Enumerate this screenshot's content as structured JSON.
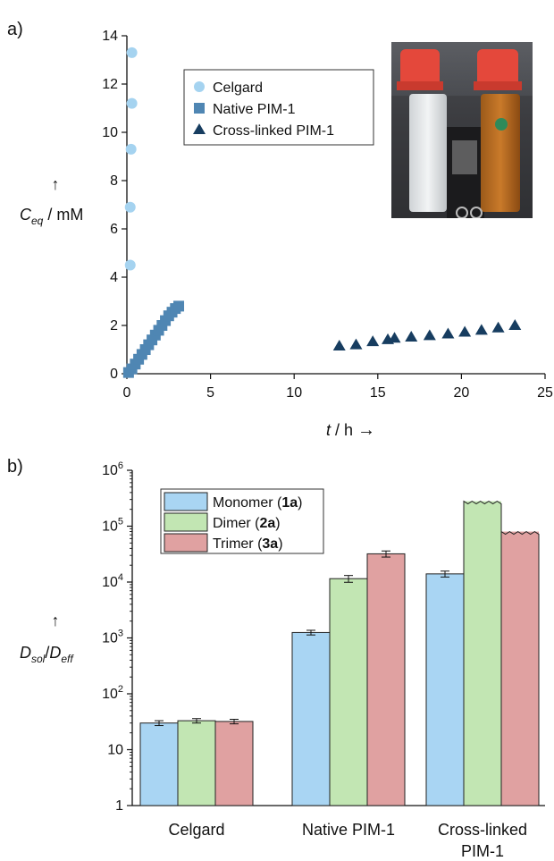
{
  "panels": {
    "a": "a)",
    "b": "b)"
  },
  "colors": {
    "celgard": "#a5d3f0",
    "native": "#4f86b3",
    "crosslinked": "#173d60",
    "monomer": "#a9d5f3",
    "dimer": "#c2e6b3",
    "trimer": "#e0a1a1"
  },
  "chart_data": [
    {
      "type": "scatter",
      "xlim": [
        0,
        25
      ],
      "ylim": [
        0,
        14
      ],
      "xticks": [
        "0",
        "5",
        "10",
        "15",
        "20",
        "25"
      ],
      "yticks": [
        "0",
        "2",
        "4",
        "6",
        "8",
        "10",
        "12",
        "14"
      ],
      "xlabel": {
        "var": "t",
        "unit": "/ h",
        "arrow": "→"
      },
      "ylabel": {
        "var": "C",
        "sub": "eq",
        "unit": "/ mM",
        "arrow": "↑"
      },
      "legend_position": "top-center",
      "series": [
        {
          "name": "Celgard",
          "marker": "circle",
          "points": [
            [
              0.2,
              4.5
            ],
            [
              0.2,
              6.9
            ],
            [
              0.25,
              9.3
            ],
            [
              0.3,
              11.2
            ],
            [
              0.3,
              13.3
            ]
          ]
        },
        {
          "name": "Native PIM-1",
          "marker": "square",
          "points": [
            [
              0.1,
              0.05
            ],
            [
              0.3,
              0.2
            ],
            [
              0.5,
              0.4
            ],
            [
              0.7,
              0.6
            ],
            [
              0.9,
              0.8
            ],
            [
              1.1,
              1.0
            ],
            [
              1.3,
              1.2
            ],
            [
              1.5,
              1.4
            ],
            [
              1.7,
              1.6
            ],
            [
              1.9,
              1.8
            ],
            [
              2.1,
              2.0
            ],
            [
              2.3,
              2.2
            ],
            [
              2.5,
              2.4
            ],
            [
              2.7,
              2.55
            ],
            [
              2.9,
              2.7
            ],
            [
              3.1,
              2.8
            ]
          ]
        },
        {
          "name": "Cross-linked PIM-1",
          "marker": "triangle",
          "points": [
            [
              12.7,
              1.15
            ],
            [
              13.7,
              1.2
            ],
            [
              14.7,
              1.33
            ],
            [
              15.6,
              1.41
            ],
            [
              16.0,
              1.47
            ],
            [
              17.0,
              1.52
            ],
            [
              18.1,
              1.58
            ],
            [
              19.2,
              1.65
            ],
            [
              20.2,
              1.72
            ],
            [
              21.2,
              1.8
            ],
            [
              22.2,
              1.9
            ],
            [
              23.2,
              2.0
            ]
          ]
        }
      ]
    },
    {
      "type": "bar",
      "yscale": "log",
      "ylim": [
        1,
        1000000
      ],
      "yticks": [
        {
          "base": "1",
          "exp": ""
        },
        {
          "base": "10",
          "exp": ""
        },
        {
          "base": "10",
          "exp": "2"
        },
        {
          "base": "10",
          "exp": "3"
        },
        {
          "base": "10",
          "exp": "4"
        },
        {
          "base": "10",
          "exp": "5"
        },
        {
          "base": "10",
          "exp": "6"
        }
      ],
      "ylabel": {
        "var": "D",
        "sub1": "sol",
        "var2": "D",
        "sub2": "eff",
        "arrow": "↑"
      },
      "categories": [
        [
          "Celgard"
        ],
        [
          "Native PIM-1"
        ],
        [
          "Cross-linked",
          "PIM-1"
        ]
      ],
      "legend_position": "top-left",
      "series": [
        {
          "name": "Monomer (",
          "bold": "1a",
          "end": ")",
          "values": [
            30,
            1250,
            14000
          ],
          "errors": [
            3,
            120,
            1700
          ],
          "truncated": [
            false,
            false,
            false
          ]
        },
        {
          "name": "Dimer (",
          "bold": "2a",
          "end": ")",
          "values": [
            33,
            11500,
            280000
          ],
          "errors": [
            3,
            1600,
            0
          ],
          "truncated": [
            false,
            false,
            true
          ]
        },
        {
          "name": "Trimer (",
          "bold": "3a",
          "end": ")",
          "values": [
            32,
            32000,
            80000
          ],
          "errors": [
            3,
            4000,
            0
          ],
          "truncated": [
            false,
            false,
            true
          ]
        }
      ]
    }
  ]
}
